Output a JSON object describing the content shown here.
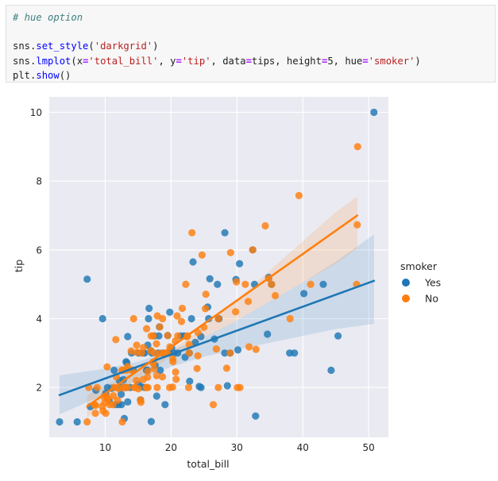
{
  "code_cell": {
    "lines": [
      [
        {
          "t": "# hue option",
          "c": "com"
        }
      ],
      [],
      [
        {
          "t": "sns",
          "c": "plain"
        },
        {
          "t": ".",
          "c": "plain"
        },
        {
          "t": "set_style",
          "c": "fn"
        },
        {
          "t": "(",
          "c": "plain"
        },
        {
          "t": "'darkgrid'",
          "c": "str"
        },
        {
          "t": ")",
          "c": "plain"
        }
      ],
      [
        {
          "t": "sns",
          "c": "plain"
        },
        {
          "t": ".",
          "c": "plain"
        },
        {
          "t": "lmplot",
          "c": "fn"
        },
        {
          "t": "(x",
          "c": "plain"
        },
        {
          "t": "=",
          "c": "op"
        },
        {
          "t": "'total_bill'",
          "c": "str"
        },
        {
          "t": ", y",
          "c": "plain"
        },
        {
          "t": "=",
          "c": "op"
        },
        {
          "t": "'tip'",
          "c": "str"
        },
        {
          "t": ", data",
          "c": "plain"
        },
        {
          "t": "=",
          "c": "op"
        },
        {
          "t": "tips, height",
          "c": "plain"
        },
        {
          "t": "=",
          "c": "op"
        },
        {
          "t": "5, hue",
          "c": "plain"
        },
        {
          "t": "=",
          "c": "op"
        },
        {
          "t": "'smoker'",
          "c": "str"
        },
        {
          "t": ")",
          "c": "plain"
        }
      ],
      [
        {
          "t": "plt",
          "c": "plain"
        },
        {
          "t": ".",
          "c": "plain"
        },
        {
          "t": "show",
          "c": "fn"
        },
        {
          "t": "()",
          "c": "plain"
        }
      ]
    ]
  },
  "chart_data": {
    "type": "scatter",
    "xlabel": "total_bill",
    "ylabel": "tip",
    "xlim": [
      1.5,
      53.0
    ],
    "ylim": [
      0.55,
      10.45
    ],
    "xticks": [
      10,
      20,
      30,
      40,
      50
    ],
    "yticks": [
      2,
      4,
      6,
      8,
      10
    ],
    "grid": true,
    "background": "#eaeaf2",
    "legend": {
      "title": "smoker",
      "placement": "right"
    },
    "series": [
      {
        "name": "Yes",
        "color": "#1f77b4",
        "fit": {
          "x": [
            3.07,
            50.81
          ],
          "y": [
            1.78,
            5.1
          ]
        },
        "ci_upper": [
          [
            3.07,
            2.35
          ],
          [
            10,
            2.55
          ],
          [
            15,
            2.75
          ],
          [
            20,
            3.08
          ],
          [
            25,
            3.45
          ],
          [
            30,
            3.95
          ],
          [
            35,
            4.5
          ],
          [
            40,
            5.05
          ],
          [
            45,
            5.65
          ],
          [
            50.81,
            6.45
          ]
        ],
        "ci_lower": [
          [
            3.07,
            1.22
          ],
          [
            10,
            1.8
          ],
          [
            15,
            2.22
          ],
          [
            20,
            2.6
          ],
          [
            25,
            2.9
          ],
          [
            30,
            3.1
          ],
          [
            35,
            3.3
          ],
          [
            40,
            3.5
          ],
          [
            45,
            3.7
          ],
          [
            50.81,
            3.85
          ]
        ],
        "points": [
          [
            3.07,
            1.0
          ],
          [
            5.75,
            1.0
          ],
          [
            7.25,
            5.15
          ],
          [
            7.74,
            1.44
          ],
          [
            8.58,
            1.92
          ],
          [
            9.6,
            4.0
          ],
          [
            10.07,
            1.83
          ],
          [
            10.34,
            2.0
          ],
          [
            10.59,
            1.61
          ],
          [
            11.02,
            1.98
          ],
          [
            11.35,
            2.5
          ],
          [
            11.59,
            1.5
          ],
          [
            12.03,
            1.5
          ],
          [
            12.16,
            2.2
          ],
          [
            12.26,
            2.0
          ],
          [
            12.43,
            1.8
          ],
          [
            12.46,
            1.5
          ],
          [
            12.74,
            2.01
          ],
          [
            12.76,
            2.23
          ],
          [
            12.9,
            1.1
          ],
          [
            13.0,
            2.0
          ],
          [
            13.13,
            2.0
          ],
          [
            13.16,
            2.75
          ],
          [
            13.28,
            2.72
          ],
          [
            13.42,
            1.58
          ],
          [
            13.42,
            3.48
          ],
          [
            13.81,
            2.0
          ],
          [
            14.0,
            3.0
          ],
          [
            14.26,
            2.5
          ],
          [
            15.01,
            2.09
          ],
          [
            15.36,
            1.64
          ],
          [
            15.48,
            2.02
          ],
          [
            15.69,
            3.0
          ],
          [
            15.98,
            3.0
          ],
          [
            16.0,
            2.0
          ],
          [
            16.27,
            2.5
          ],
          [
            16.4,
            2.5
          ],
          [
            16.47,
            3.23
          ],
          [
            16.58,
            4.0
          ],
          [
            16.93,
            3.07
          ],
          [
            16.99,
            1.01
          ],
          [
            17.07,
            3.0
          ],
          [
            17.47,
            3.5
          ],
          [
            17.59,
            2.64
          ],
          [
            17.82,
            1.75
          ],
          [
            18.04,
            3.0
          ],
          [
            18.15,
            3.5
          ],
          [
            18.24,
            3.76
          ],
          [
            18.35,
            2.5
          ],
          [
            18.78,
            3.0
          ],
          [
            19.08,
            1.5
          ],
          [
            19.44,
            3.0
          ],
          [
            19.49,
            3.51
          ],
          [
            19.65,
            3.0
          ],
          [
            19.81,
            4.19
          ],
          [
            20.08,
            3.15
          ],
          [
            20.45,
            3.0
          ],
          [
            21.01,
            3.0
          ],
          [
            21.5,
            3.5
          ],
          [
            22.12,
            2.88
          ],
          [
            22.76,
            3.0
          ],
          [
            22.82,
            2.18
          ],
          [
            23.1,
            4.0
          ],
          [
            23.33,
            5.65
          ],
          [
            23.68,
            3.31
          ],
          [
            24.27,
            2.03
          ],
          [
            24.52,
            3.48
          ],
          [
            24.55,
            2.0
          ],
          [
            25.56,
            4.34
          ],
          [
            25.71,
            4.0
          ],
          [
            25.89,
            5.16
          ],
          [
            26.59,
            3.41
          ],
          [
            27.05,
            5.0
          ],
          [
            27.2,
            4.0
          ],
          [
            28.15,
            3.0
          ],
          [
            28.17,
            6.5
          ],
          [
            28.55,
            2.05
          ],
          [
            28.97,
            3.0
          ],
          [
            29.85,
            5.14
          ],
          [
            30.14,
            3.09
          ],
          [
            30.4,
            5.6
          ],
          [
            32.4,
            6.0
          ],
          [
            32.68,
            5.0
          ],
          [
            32.83,
            1.17
          ],
          [
            34.63,
            3.55
          ],
          [
            34.81,
            5.2
          ],
          [
            35.26,
            5.0
          ],
          [
            38.01,
            3.0
          ],
          [
            38.73,
            3.0
          ],
          [
            40.17,
            4.73
          ],
          [
            43.11,
            5.0
          ],
          [
            44.3,
            2.5
          ],
          [
            45.35,
            3.5
          ],
          [
            50.81,
            10.0
          ],
          [
            15.06,
            3.0
          ],
          [
            22.0,
            3.5
          ],
          [
            27.28,
            4.0
          ],
          [
            16.66,
            4.3
          ]
        ]
      },
      {
        "name": "No",
        "color": "#ff7f0e",
        "fit": {
          "x": [
            7.25,
            48.27
          ],
          "y": [
            1.45,
            7.0
          ]
        },
        "ci_upper": [
          [
            7.25,
            1.78
          ],
          [
            10,
            2.05
          ],
          [
            15,
            2.55
          ],
          [
            20,
            3.08
          ],
          [
            25,
            3.75
          ],
          [
            30,
            4.55
          ],
          [
            35,
            5.4
          ],
          [
            40,
            6.25
          ],
          [
            45,
            7.1
          ],
          [
            48.27,
            7.55
          ]
        ],
        "ci_lower": [
          [
            7.25,
            1.12
          ],
          [
            10,
            1.58
          ],
          [
            15,
            2.25
          ],
          [
            20,
            2.9
          ],
          [
            25,
            3.45
          ],
          [
            30,
            3.95
          ],
          [
            35,
            4.5
          ],
          [
            40,
            5.05
          ],
          [
            45,
            5.6
          ],
          [
            48.27,
            6.05
          ]
        ],
        "points": [
          [
            7.25,
            1.0
          ],
          [
            7.51,
            2.0
          ],
          [
            8.35,
            1.5
          ],
          [
            8.51,
            1.25
          ],
          [
            8.52,
            1.48
          ],
          [
            8.77,
            2.0
          ],
          [
            9.55,
            1.45
          ],
          [
            9.68,
            1.32
          ],
          [
            9.78,
            1.73
          ],
          [
            9.94,
            1.56
          ],
          [
            10.07,
            1.25
          ],
          [
            10.27,
            1.71
          ],
          [
            10.29,
            2.6
          ],
          [
            10.33,
            1.67
          ],
          [
            10.34,
            1.66
          ],
          [
            10.65,
            1.5
          ],
          [
            11.17,
            1.5
          ],
          [
            11.24,
            1.76
          ],
          [
            11.38,
            2.0
          ],
          [
            11.61,
            3.39
          ],
          [
            11.69,
            2.31
          ],
          [
            11.87,
            1.63
          ],
          [
            12.02,
            1.97
          ],
          [
            12.54,
            2.5
          ],
          [
            12.6,
            1.0
          ],
          [
            12.66,
            2.5
          ],
          [
            12.69,
            2.0
          ],
          [
            13.03,
            2.0
          ],
          [
            13.27,
            2.5
          ],
          [
            13.37,
            2.0
          ],
          [
            13.39,
            2.61
          ],
          [
            13.94,
            3.06
          ],
          [
            14.07,
            2.5
          ],
          [
            14.31,
            4.0
          ],
          [
            14.48,
            2.0
          ],
          [
            14.52,
            2.0
          ],
          [
            14.73,
            2.2
          ],
          [
            14.78,
            3.23
          ],
          [
            14.83,
            3.02
          ],
          [
            15.04,
            1.96
          ],
          [
            15.36,
            1.64
          ],
          [
            15.42,
            1.57
          ],
          [
            15.53,
            3.0
          ],
          [
            15.77,
            2.23
          ],
          [
            15.81,
            3.16
          ],
          [
            16.21,
            2.0
          ],
          [
            16.29,
            3.71
          ],
          [
            16.31,
            2.0
          ],
          [
            16.43,
            2.3
          ],
          [
            16.45,
            2.47
          ],
          [
            16.49,
            2.0
          ],
          [
            16.97,
            3.5
          ],
          [
            17.26,
            2.74
          ],
          [
            17.29,
            2.71
          ],
          [
            17.31,
            3.5
          ],
          [
            17.46,
            2.54
          ],
          [
            17.51,
            3.0
          ],
          [
            17.78,
            3.27
          ],
          [
            17.81,
            2.34
          ],
          [
            17.89,
            2.0
          ],
          [
            17.92,
            4.08
          ],
          [
            18.29,
            3.76
          ],
          [
            18.43,
            3.0
          ],
          [
            18.69,
            2.31
          ],
          [
            18.71,
            4.0
          ],
          [
            19.44,
            3.0
          ],
          [
            19.49,
            3.51
          ],
          [
            19.77,
            2.0
          ],
          [
            19.82,
            3.18
          ],
          [
            20.23,
            2.01
          ],
          [
            20.27,
            2.83
          ],
          [
            20.29,
            2.75
          ],
          [
            20.65,
            3.35
          ],
          [
            20.69,
            2.45
          ],
          [
            20.76,
            2.24
          ],
          [
            20.92,
            4.08
          ],
          [
            21.01,
            3.5
          ],
          [
            21.58,
            3.92
          ],
          [
            21.7,
            4.3
          ],
          [
            22.23,
            5.0
          ],
          [
            22.42,
            3.48
          ],
          [
            22.49,
            3.5
          ],
          [
            22.67,
            2.0
          ],
          [
            22.75,
            3.25
          ],
          [
            23.17,
            6.5
          ],
          [
            23.95,
            2.55
          ],
          [
            24.06,
            3.6
          ],
          [
            24.08,
            2.92
          ],
          [
            24.71,
            5.85
          ],
          [
            25.0,
            3.75
          ],
          [
            25.21,
            4.29
          ],
          [
            25.29,
            4.71
          ],
          [
            26.41,
            1.5
          ],
          [
            26.88,
            3.12
          ],
          [
            27.18,
            2.0
          ],
          [
            27.2,
            4.0
          ],
          [
            28.44,
            2.56
          ],
          [
            28.97,
            3.0
          ],
          [
            29.03,
            5.92
          ],
          [
            29.8,
            4.2
          ],
          [
            29.93,
            5.07
          ],
          [
            30.06,
            2.0
          ],
          [
            30.46,
            2.0
          ],
          [
            31.27,
            5.0
          ],
          [
            31.71,
            4.5
          ],
          [
            31.85,
            3.18
          ],
          [
            32.4,
            6.0
          ],
          [
            32.9,
            3.11
          ],
          [
            34.3,
            6.7
          ],
          [
            34.83,
            5.17
          ],
          [
            35.26,
            5.0
          ],
          [
            35.83,
            4.67
          ],
          [
            38.07,
            4.0
          ],
          [
            39.42,
            7.58
          ],
          [
            41.19,
            5.0
          ],
          [
            48.17,
            5.0
          ],
          [
            48.27,
            6.73
          ],
          [
            48.33,
            9.0
          ],
          [
            16.93,
            3.07
          ],
          [
            19.08,
            3.0
          ],
          [
            22.76,
            3.0
          ]
        ]
      }
    ]
  }
}
